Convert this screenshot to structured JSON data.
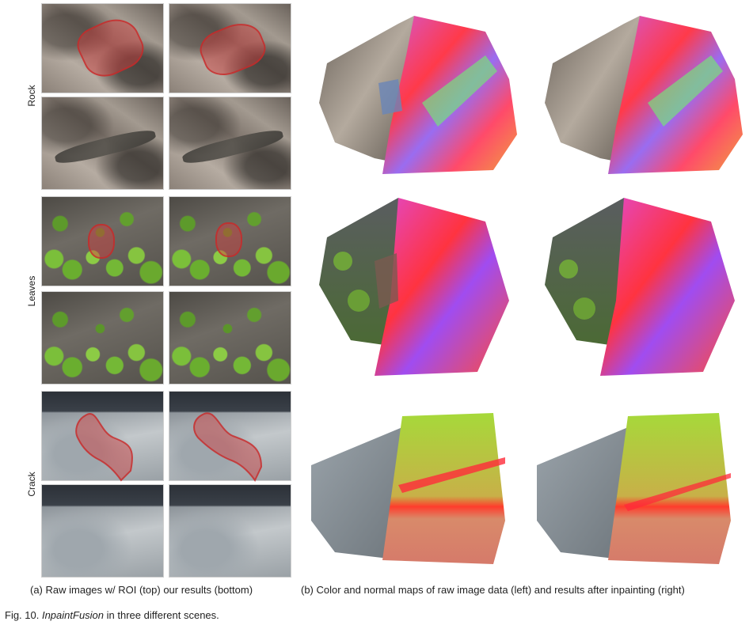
{
  "row_labels": {
    "rock": "Rock",
    "leaves": "Leaves",
    "crack": "Crack"
  },
  "captions": {
    "a": "(a) Raw images w/ ROI (top) our results (bottom)",
    "b": "(b) Color and normal maps of raw image data (left) and results after inpainting (right)"
  },
  "figure": {
    "prefix": "Fig. 10. ",
    "name": "InpaintFusion",
    "suffix": " in three different scenes."
  }
}
